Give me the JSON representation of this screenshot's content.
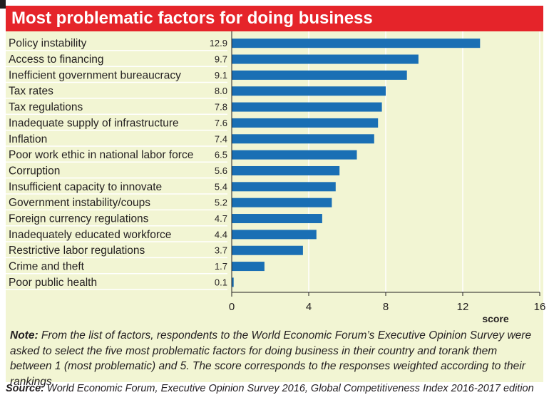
{
  "title": "Most problematic factors for doing business",
  "note": {
    "label": "Note:",
    "text": " From the list of factors, respondents to the World Economic Forum’s Executive Opinion Survey were asked to select the five most problematic factors for doing business in their country and torank them between 1 (most problematic) and 5. The score corresponds to the responses weighted according to their rankings."
  },
  "source": {
    "label": "Source:",
    "text": " World Economic Forum, Executive Opinion Survey 2016, Global Competitiveness Index 2016-2017 edition"
  },
  "colors": {
    "title_bg": "#e5242a",
    "panel_bg": "#f2f5d3",
    "bar": "#1a6fb4",
    "grid": "#ffffff"
  },
  "chart_data": {
    "type": "bar",
    "orientation": "horizontal",
    "categories": [
      "Policy instability",
      "Access to financing",
      "Inefficient government bureaucracy",
      "Tax rates",
      "Tax regulations",
      "Inadequate supply of infrastructure",
      "Inflation",
      "Poor work ethic in national labor force",
      "Corruption",
      "Insufficient capacity to innovate",
      "Government instability/coups",
      "Foreign currency regulations",
      "Inadequately educated workforce",
      "Restrictive labor regulations",
      "Crime and theft",
      "Poor public health"
    ],
    "values": [
      12.9,
      9.7,
      9.1,
      8.0,
      7.8,
      7.6,
      7.4,
      6.5,
      5.6,
      5.4,
      5.2,
      4.7,
      4.4,
      3.7,
      1.7,
      0.1
    ],
    "value_labels": [
      "12.9",
      "9.7",
      "9.1",
      "8.0",
      "7.8",
      "7.6",
      "7.4",
      "6.5",
      "5.6",
      "5.4",
      "5.2",
      "4.7",
      "4.4",
      "3.7",
      "1.7",
      "0.1"
    ],
    "xlim": [
      0,
      16
    ],
    "xticks": [
      0,
      4,
      8,
      12,
      16
    ],
    "xlabel": "score",
    "grid": true
  }
}
